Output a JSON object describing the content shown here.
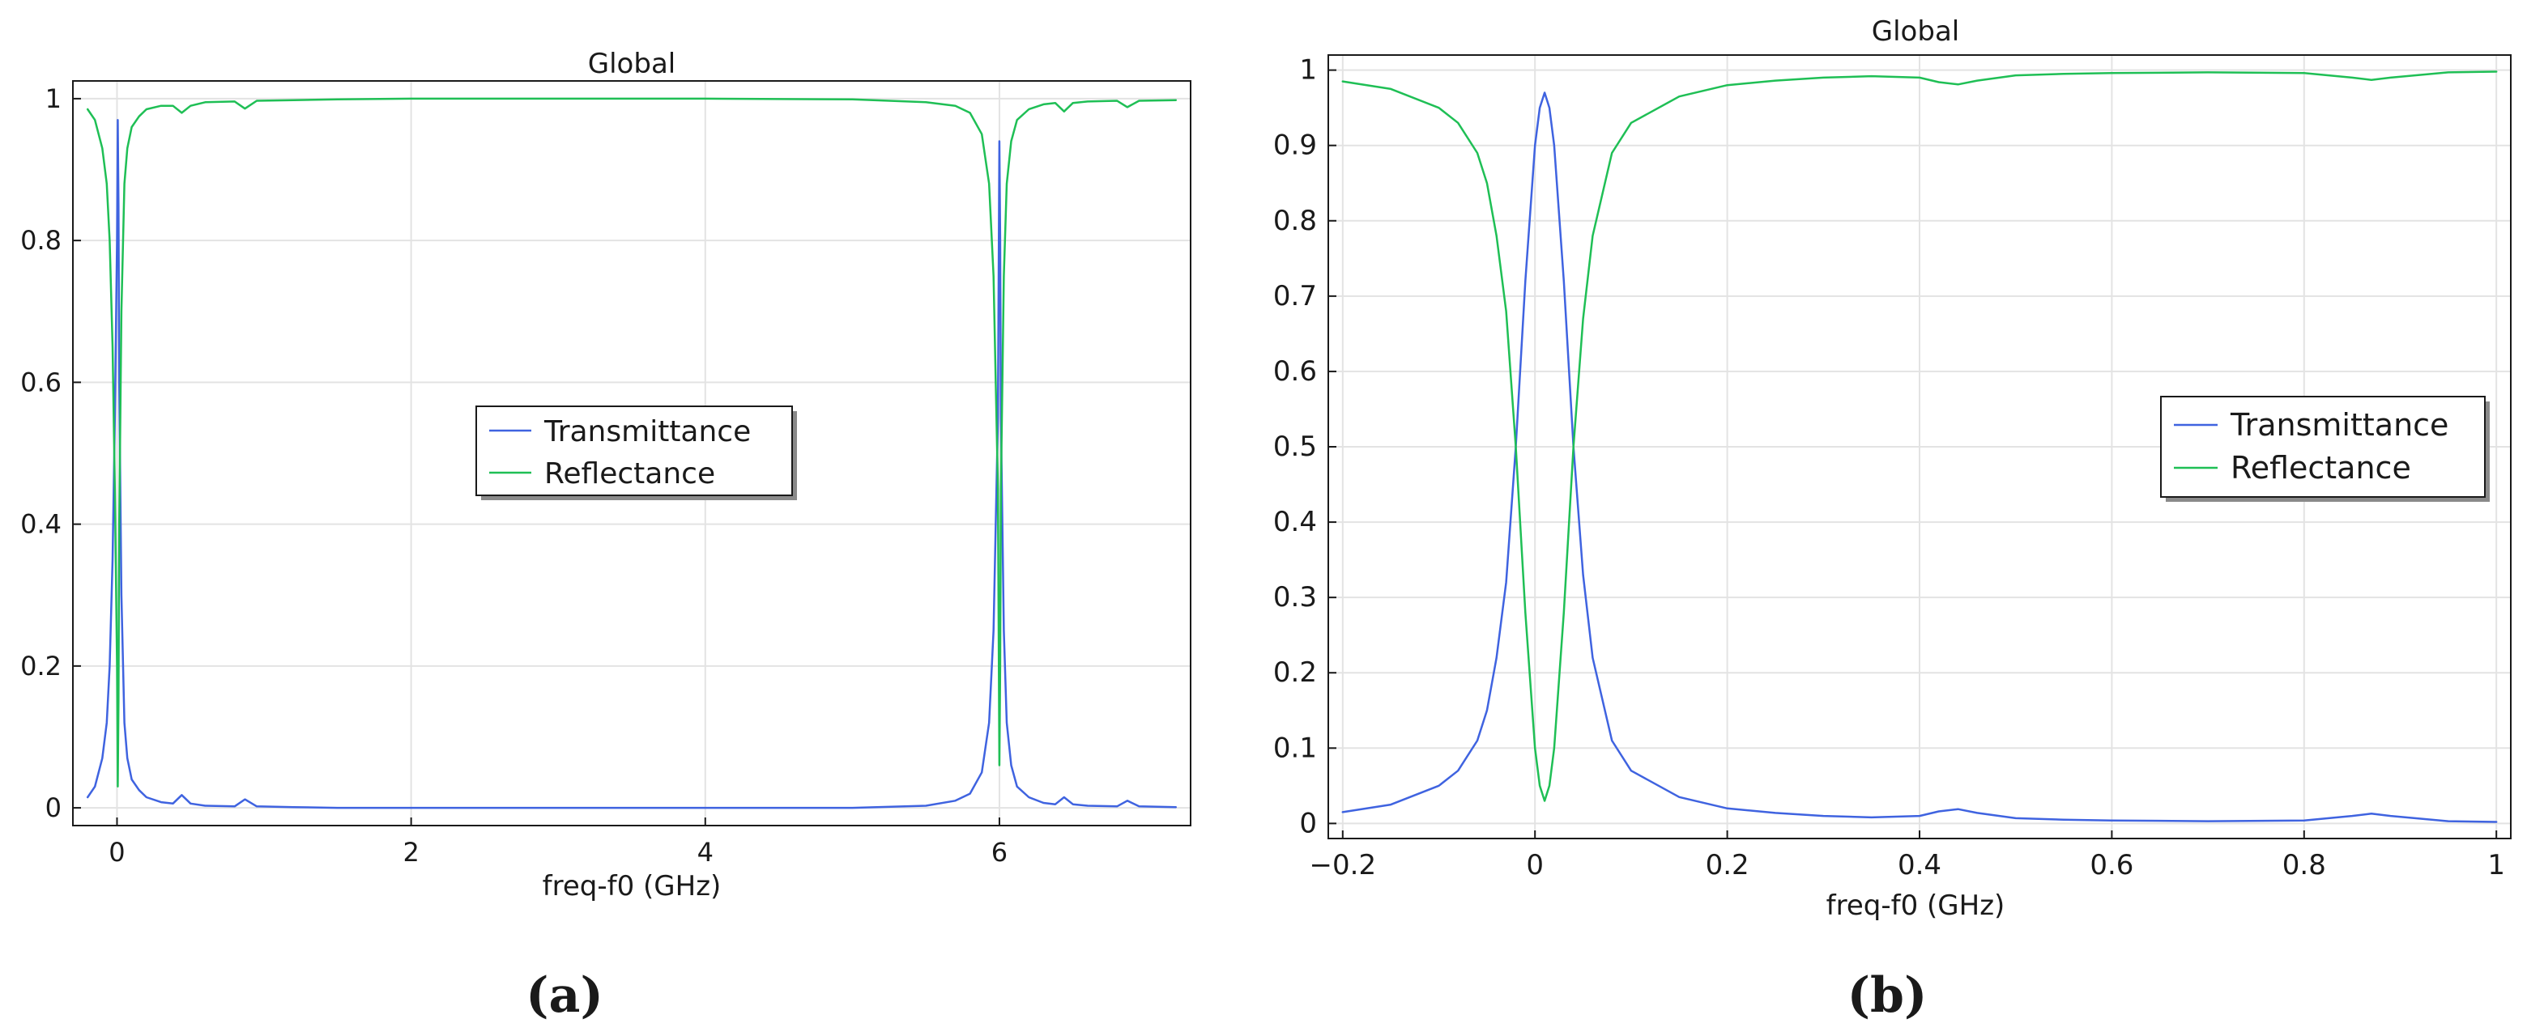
{
  "chart_data": [
    {
      "type": "line",
      "panel_label": "(a)",
      "title": "Global",
      "xlabel": "freq-f0 (GHz)",
      "ylabel": "",
      "xlim": [
        -0.3,
        7.3
      ],
      "ylim": [
        -0.025,
        1.025
      ],
      "xticks": [
        0,
        2,
        4,
        6
      ],
      "xtick_labels": [
        "0",
        "2",
        "4",
        "6"
      ],
      "yticks": [
        0,
        0.2,
        0.4,
        0.6,
        0.8,
        1
      ],
      "ytick_labels": [
        "0",
        "0.2",
        "0.4",
        "0.6",
        "0.8",
        "1"
      ],
      "grid": true,
      "legend_position": "center",
      "series": [
        {
          "name": "Transmittance",
          "color": "#3f63e0",
          "x": [
            -0.2,
            -0.15,
            -0.1,
            -0.07,
            -0.05,
            -0.03,
            -0.015,
            0,
            0.005,
            0.01,
            0.015,
            0.03,
            0.05,
            0.07,
            0.1,
            0.15,
            0.2,
            0.3,
            0.38,
            0.44,
            0.5,
            0.6,
            0.8,
            0.87,
            0.95,
            1.2,
            1.5,
            2,
            3,
            4,
            5,
            5.5,
            5.7,
            5.8,
            5.88,
            5.93,
            5.96,
            5.99,
            6,
            6.005,
            6.01,
            6.03,
            6.05,
            6.08,
            6.12,
            6.2,
            6.3,
            6.38,
            6.44,
            6.5,
            6.6,
            6.8,
            6.87,
            6.95,
            7.2
          ],
          "y": [
            0.015,
            0.03,
            0.07,
            0.12,
            0.2,
            0.35,
            0.55,
            0.8,
            0.97,
            0.85,
            0.6,
            0.3,
            0.12,
            0.07,
            0.04,
            0.025,
            0.015,
            0.008,
            0.006,
            0.018,
            0.006,
            0.003,
            0.002,
            0.012,
            0.002,
            0.001,
            0.0,
            0.0,
            0.0,
            0.0,
            0.0,
            0.003,
            0.01,
            0.02,
            0.05,
            0.12,
            0.25,
            0.55,
            0.94,
            0.8,
            0.55,
            0.25,
            0.12,
            0.06,
            0.03,
            0.015,
            0.007,
            0.005,
            0.015,
            0.005,
            0.003,
            0.002,
            0.01,
            0.002,
            0.001
          ]
        },
        {
          "name": "Reflectance",
          "color": "#1fbf55",
          "x": [
            -0.2,
            -0.15,
            -0.1,
            -0.07,
            -0.05,
            -0.03,
            -0.015,
            0,
            0.005,
            0.01,
            0.015,
            0.03,
            0.05,
            0.07,
            0.1,
            0.15,
            0.2,
            0.3,
            0.38,
            0.44,
            0.5,
            0.6,
            0.8,
            0.87,
            0.95,
            1.2,
            1.5,
            2,
            3,
            4,
            5,
            5.5,
            5.7,
            5.8,
            5.88,
            5.93,
            5.96,
            5.99,
            6,
            6.005,
            6.01,
            6.03,
            6.05,
            6.08,
            6.12,
            6.2,
            6.3,
            6.38,
            6.44,
            6.5,
            6.6,
            6.8,
            6.87,
            6.95,
            7.2
          ],
          "y": [
            0.985,
            0.97,
            0.93,
            0.88,
            0.8,
            0.65,
            0.45,
            0.2,
            0.03,
            0.15,
            0.4,
            0.7,
            0.88,
            0.93,
            0.96,
            0.975,
            0.985,
            0.99,
            0.99,
            0.98,
            0.99,
            0.995,
            0.996,
            0.986,
            0.997,
            0.998,
            0.999,
            1.0,
            1.0,
            1.0,
            0.999,
            0.995,
            0.99,
            0.98,
            0.95,
            0.88,
            0.75,
            0.45,
            0.06,
            0.2,
            0.45,
            0.75,
            0.88,
            0.94,
            0.97,
            0.985,
            0.992,
            0.994,
            0.982,
            0.994,
            0.996,
            0.997,
            0.988,
            0.997,
            0.998
          ]
        }
      ]
    },
    {
      "type": "line",
      "panel_label": "(b)",
      "title": "Global",
      "xlabel": "freq-f0 (GHz)",
      "ylabel": "",
      "xlim": [
        -0.215,
        1.015
      ],
      "ylim": [
        -0.02,
        1.02
      ],
      "xticks": [
        -0.2,
        0,
        0.2,
        0.4,
        0.6,
        0.8,
        1
      ],
      "xtick_labels": [
        "−0.2",
        "0",
        "0.2",
        "0.4",
        "0.6",
        "0.8",
        "1"
      ],
      "yticks": [
        0,
        0.1,
        0.2,
        0.3,
        0.4,
        0.5,
        0.6,
        0.7,
        0.8,
        0.9,
        1
      ],
      "ytick_labels": [
        "0",
        "0.1",
        "0.2",
        "0.3",
        "0.4",
        "0.5",
        "0.6",
        "0.7",
        "0.8",
        "0.9",
        "1"
      ],
      "grid": true,
      "legend_position": "right",
      "series": [
        {
          "name": "Transmittance",
          "color": "#3f63e0",
          "x": [
            -0.2,
            -0.15,
            -0.1,
            -0.08,
            -0.06,
            -0.05,
            -0.04,
            -0.03,
            -0.02,
            -0.01,
            0,
            0.005,
            0.01,
            0.015,
            0.02,
            0.03,
            0.04,
            0.05,
            0.06,
            0.08,
            0.1,
            0.15,
            0.2,
            0.25,
            0.3,
            0.35,
            0.4,
            0.42,
            0.44,
            0.46,
            0.5,
            0.55,
            0.6,
            0.7,
            0.8,
            0.85,
            0.87,
            0.89,
            0.95,
            1.0
          ],
          "y": [
            0.015,
            0.025,
            0.05,
            0.07,
            0.11,
            0.15,
            0.22,
            0.32,
            0.5,
            0.72,
            0.9,
            0.95,
            0.97,
            0.95,
            0.9,
            0.72,
            0.5,
            0.33,
            0.22,
            0.11,
            0.07,
            0.035,
            0.02,
            0.014,
            0.01,
            0.008,
            0.01,
            0.016,
            0.019,
            0.014,
            0.007,
            0.005,
            0.004,
            0.003,
            0.004,
            0.01,
            0.013,
            0.01,
            0.003,
            0.002
          ]
        },
        {
          "name": "Reflectance",
          "color": "#1fbf55",
          "x": [
            -0.2,
            -0.15,
            -0.1,
            -0.08,
            -0.06,
            -0.05,
            -0.04,
            -0.03,
            -0.02,
            -0.01,
            0,
            0.005,
            0.01,
            0.015,
            0.02,
            0.03,
            0.04,
            0.05,
            0.06,
            0.08,
            0.1,
            0.15,
            0.2,
            0.25,
            0.3,
            0.35,
            0.4,
            0.42,
            0.44,
            0.46,
            0.5,
            0.55,
            0.6,
            0.7,
            0.8,
            0.85,
            0.87,
            0.89,
            0.95,
            1.0
          ],
          "y": [
            0.985,
            0.975,
            0.95,
            0.93,
            0.89,
            0.85,
            0.78,
            0.68,
            0.5,
            0.28,
            0.1,
            0.05,
            0.03,
            0.05,
            0.1,
            0.28,
            0.5,
            0.67,
            0.78,
            0.89,
            0.93,
            0.965,
            0.98,
            0.986,
            0.99,
            0.992,
            0.99,
            0.984,
            0.981,
            0.986,
            0.993,
            0.995,
            0.996,
            0.997,
            0.996,
            0.99,
            0.987,
            0.99,
            0.997,
            0.998
          ]
        }
      ]
    }
  ]
}
